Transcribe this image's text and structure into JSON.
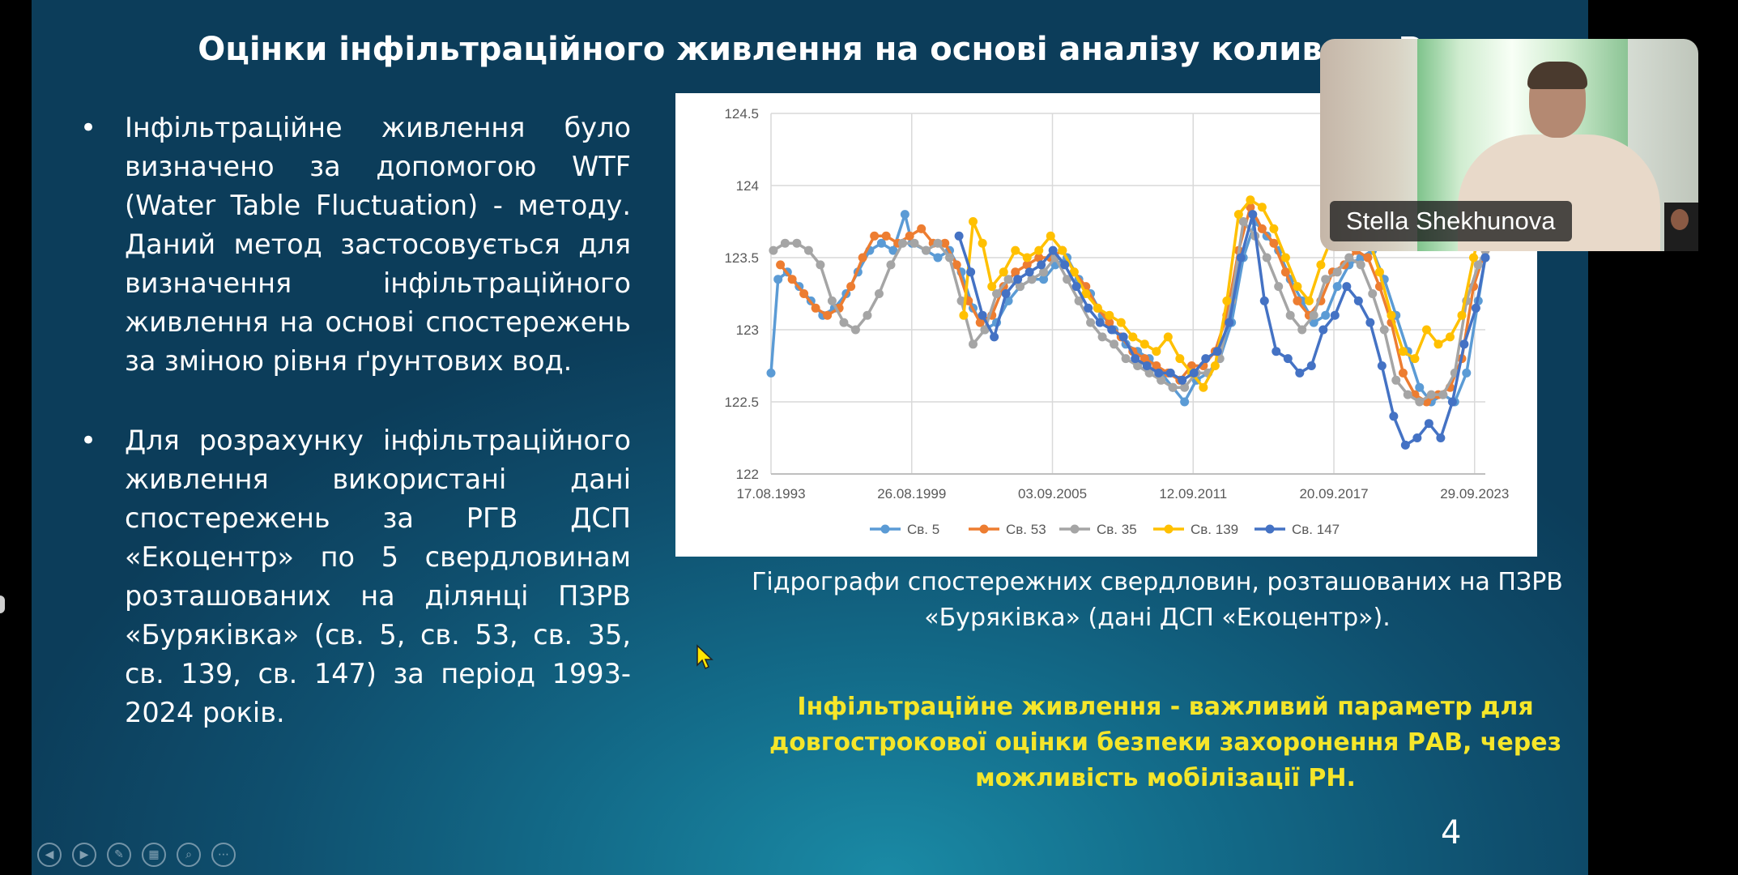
{
  "slide": {
    "title": "Оцінки інфільтраційного живлення на основі аналізу коливань Р",
    "bullets": [
      "Інфільтраційне живлення було визначено за допомогою WTF (Water Table Fluctuation) - методу. Даний метод застосовується для визначення інфільтраційного живлення на основі спостережень за зміною рівня ґрунтових вод.",
      "Для розрахунку інфільтраційного живлення використані дані спостережень за РГВ ДСП «Екоцентр» по 5 свердловинам розташованих на ділянці ПЗРВ «Буряківка» (св. 5, св. 53, св. 35, св. 139, св. 147) за період 1993-2024 років."
    ],
    "caption": "Гідрографи спостережних свердловин, розташованих на ПЗРВ «Буряківка» (дані ДСП «Екоцентр»).",
    "note": "Інфільтраційне живлення - важливий параметр для довгострокової оцінки безпеки захоронення РАВ, через можливість мобілізації РН.",
    "page_number": "4"
  },
  "video": {
    "participant_name": "Stella Shekhunova"
  },
  "controls": [
    {
      "name": "previous-slide-icon",
      "glyph": "◀"
    },
    {
      "name": "next-slide-icon",
      "glyph": "▶"
    },
    {
      "name": "pen-icon",
      "glyph": "✎"
    },
    {
      "name": "slides-grid-icon",
      "glyph": "▦"
    },
    {
      "name": "zoom-icon",
      "glyph": "⌕"
    },
    {
      "name": "more-options-icon",
      "glyph": "⋯"
    }
  ],
  "chart_data": {
    "type": "line",
    "title": "",
    "xlabel": "",
    "ylabel": "",
    "x_tick_labels": [
      "17.08.1993",
      "26.08.1999",
      "03.09.2005",
      "12.09.2011",
      "20.09.2017",
      "29.09.2023"
    ],
    "xlim": [
      1993.6,
      2024.0
    ],
    "ylim": [
      122,
      124.5
    ],
    "y_ticks": [
      "124.5",
      "124",
      "123.5",
      "123",
      "122.5",
      "122"
    ],
    "y_tick_values": [
      124.5,
      124,
      123.5,
      123,
      122.5,
      122
    ],
    "grid": true,
    "legend_position": "bottom",
    "series": [
      {
        "name": "Св. 5",
        "color": "#5b9bd5",
        "x": [
          1993.6,
          1993.9,
          1994.3,
          1994.8,
          1995.3,
          1995.8,
          1996.3,
          1996.8,
          1997.3,
          1997.8,
          1998.3,
          1998.8,
          1999.3,
          1999.6,
          2000.2,
          2000.7,
          2001.2,
          2001.7,
          2002.2,
          2002.7,
          2003.2,
          2003.7,
          2004.2,
          2004.7,
          2005.2,
          2005.7,
          2006.2,
          2006.7,
          2007.2,
          2007.7,
          2008.2,
          2008.7,
          2009.2,
          2009.7,
          2010.2,
          2010.7,
          2011.2,
          2011.7,
          2012.2,
          2012.7,
          2013.2,
          2013.7,
          2014.2,
          2014.7,
          2015.2,
          2015.7,
          2016.2,
          2016.7,
          2017.2,
          2017.7,
          2018.2,
          2018.7,
          2019.2,
          2019.7,
          2020.2,
          2020.7,
          2021.2,
          2021.7,
          2022.2,
          2022.7,
          2023.2,
          2023.7,
          2024.0
        ],
        "y": [
          122.7,
          123.35,
          123.4,
          123.3,
          123.2,
          123.1,
          123.15,
          123.25,
          123.4,
          123.55,
          123.6,
          123.55,
          123.8,
          123.6,
          123.55,
          123.5,
          123.55,
          123.4,
          123.15,
          123.0,
          123.05,
          123.2,
          123.3,
          123.35,
          123.35,
          123.45,
          123.5,
          123.35,
          123.25,
          123.1,
          123.0,
          122.9,
          122.85,
          122.8,
          122.7,
          122.6,
          122.5,
          122.65,
          122.7,
          122.8,
          123.05,
          123.5,
          123.75,
          123.65,
          123.55,
          123.35,
          123.2,
          123.05,
          123.1,
          123.3,
          123.45,
          123.5,
          123.55,
          123.35,
          123.1,
          122.85,
          122.6,
          122.5,
          122.55,
          122.5,
          122.7,
          123.2,
          123.5
        ]
      },
      {
        "name": "Св. 53",
        "color": "#ed7d31",
        "x": [
          1994.0,
          1994.5,
          1995.0,
          1995.5,
          1996.0,
          1996.5,
          1997.0,
          1997.5,
          1998.0,
          1998.5,
          1999.0,
          1999.5,
          2000.0,
          2000.5,
          2001.0,
          2001.5,
          2002.0,
          2002.5,
          2003.0,
          2003.5,
          2004.0,
          2004.5,
          2005.0,
          2005.5,
          2006.0,
          2006.5,
          2007.0,
          2007.5,
          2008.0,
          2008.5,
          2009.0,
          2009.5,
          2010.0,
          2010.5,
          2011.0,
          2011.5,
          2012.0,
          2012.5,
          2013.0,
          2013.5,
          2014.0,
          2014.5,
          2015.0,
          2015.5,
          2016.0,
          2016.5,
          2017.0,
          2017.5,
          2018.0,
          2018.5,
          2019.0,
          2019.5,
          2020.0,
          2020.5,
          2021.0,
          2021.5,
          2022.0,
          2022.5,
          2023.0,
          2023.5,
          2024.0
        ],
        "y": [
          123.45,
          123.35,
          123.25,
          123.15,
          123.1,
          123.15,
          123.3,
          123.5,
          123.65,
          123.65,
          123.6,
          123.65,
          123.7,
          123.6,
          123.6,
          123.45,
          123.2,
          123.05,
          123.1,
          123.3,
          123.4,
          123.45,
          123.5,
          123.5,
          123.55,
          123.4,
          123.3,
          123.15,
          123.05,
          122.95,
          122.85,
          122.8,
          122.75,
          122.7,
          122.65,
          122.75,
          122.75,
          122.85,
          123.1,
          123.55,
          123.85,
          123.7,
          123.6,
          123.4,
          123.2,
          123.1,
          123.2,
          123.4,
          123.45,
          123.55,
          123.5,
          123.3,
          123.05,
          122.7,
          122.55,
          122.5,
          122.55,
          122.6,
          122.8,
          123.3,
          123.55
        ]
      },
      {
        "name": "Св. 35",
        "color": "#a5a5a5",
        "x": [
          1993.7,
          1994.2,
          1994.7,
          1995.2,
          1995.7,
          1996.2,
          1996.7,
          1997.2,
          1997.7,
          1998.2,
          1998.7,
          1999.2,
          1999.7,
          2000.2,
          2000.7,
          2001.2,
          2001.7,
          2002.2,
          2002.7,
          2003.2,
          2003.7,
          2004.2,
          2004.7,
          2005.2,
          2005.7,
          2006.2,
          2006.7,
          2007.2,
          2007.7,
          2008.2,
          2008.7,
          2009.2,
          2009.7,
          2010.2,
          2010.7,
          2011.2,
          2011.7,
          2012.2,
          2012.7,
          2013.2,
          2013.7,
          2014.2,
          2014.7,
          2015.2,
          2015.7,
          2016.2,
          2016.7,
          2017.2,
          2017.7,
          2018.2,
          2018.7,
          2019.2,
          2019.7,
          2020.2,
          2020.7,
          2021.2,
          2021.7,
          2022.2,
          2022.7,
          2023.2,
          2023.7,
          2024.0
        ],
        "y": [
          123.55,
          123.6,
          123.6,
          123.55,
          123.45,
          123.2,
          123.05,
          123.0,
          123.1,
          123.25,
          123.45,
          123.6,
          123.6,
          123.55,
          123.6,
          123.5,
          123.2,
          122.9,
          123.0,
          123.25,
          123.35,
          123.3,
          123.35,
          123.4,
          123.5,
          123.35,
          123.2,
          123.05,
          122.95,
          122.9,
          122.8,
          122.75,
          122.7,
          122.65,
          122.6,
          122.6,
          122.7,
          122.7,
          122.8,
          123.2,
          123.75,
          123.65,
          123.5,
          123.3,
          123.1,
          123.0,
          123.1,
          123.35,
          123.4,
          123.5,
          123.45,
          123.25,
          123.0,
          122.65,
          122.55,
          122.5,
          122.55,
          122.55,
          122.7,
          123.2,
          123.45,
          123.55
        ]
      },
      {
        "name": "Св. 139",
        "color": "#ffc000",
        "x": [
          2001.8,
          2002.2,
          2002.6,
          2003.0,
          2003.5,
          2004.0,
          2004.5,
          2005.0,
          2005.5,
          2006.0,
          2006.5,
          2007.0,
          2007.5,
          2008.0,
          2008.5,
          2009.0,
          2009.5,
          2010.0,
          2010.5,
          2011.0,
          2011.5,
          2012.0,
          2012.5,
          2013.0,
          2013.5,
          2014.0,
          2014.5,
          2015.0,
          2015.5,
          2016.0,
          2016.5,
          2017.0,
          2017.5,
          2018.0,
          2018.5,
          2019.0,
          2019.5,
          2020.0,
          2020.5,
          2021.0,
          2021.5,
          2022.0,
          2022.5,
          2023.0,
          2023.5,
          2024.0
        ],
        "y": [
          123.1,
          123.75,
          123.6,
          123.3,
          123.4,
          123.55,
          123.5,
          123.55,
          123.65,
          123.55,
          123.4,
          123.25,
          123.15,
          123.1,
          123.05,
          122.95,
          122.9,
          122.85,
          122.95,
          122.8,
          122.7,
          122.6,
          122.75,
          123.2,
          123.8,
          123.9,
          123.85,
          123.7,
          123.5,
          123.3,
          123.2,
          123.45,
          123.65,
          123.75,
          123.7,
          123.65,
          123.4,
          123.1,
          122.85,
          122.8,
          123.0,
          122.9,
          122.95,
          123.1,
          123.5,
          123.85
        ]
      },
      {
        "name": "Св. 147",
        "color": "#4472c4",
        "x": [
          2001.6,
          2002.1,
          2002.6,
          2003.1,
          2003.6,
          2004.1,
          2004.6,
          2005.1,
          2005.6,
          2006.1,
          2006.6,
          2007.1,
          2007.6,
          2008.1,
          2008.6,
          2009.1,
          2009.6,
          2010.1,
          2010.6,
          2011.1,
          2011.6,
          2012.1,
          2012.6,
          2013.1,
          2013.6,
          2014.1,
          2014.6,
          2015.1,
          2015.6,
          2016.1,
          2016.6,
          2017.1,
          2017.6,
          2018.1,
          2018.6,
          2019.1,
          2019.6,
          2020.1,
          2020.6,
          2021.1,
          2021.6,
          2022.1,
          2022.6,
          2023.1,
          2023.6,
          2024.0
        ],
        "y": [
          123.65,
          123.4,
          123.1,
          122.95,
          123.25,
          123.35,
          123.4,
          123.45,
          123.55,
          123.45,
          123.3,
          123.15,
          123.05,
          123.0,
          122.95,
          122.8,
          122.75,
          122.7,
          122.7,
          122.65,
          122.7,
          122.8,
          122.85,
          123.05,
          123.5,
          123.8,
          123.2,
          122.85,
          122.8,
          122.7,
          122.75,
          123.0,
          123.1,
          123.3,
          123.2,
          123.05,
          122.75,
          122.4,
          122.2,
          122.25,
          122.35,
          122.25,
          122.5,
          122.9,
          123.15,
          123.5
        ]
      }
    ]
  }
}
